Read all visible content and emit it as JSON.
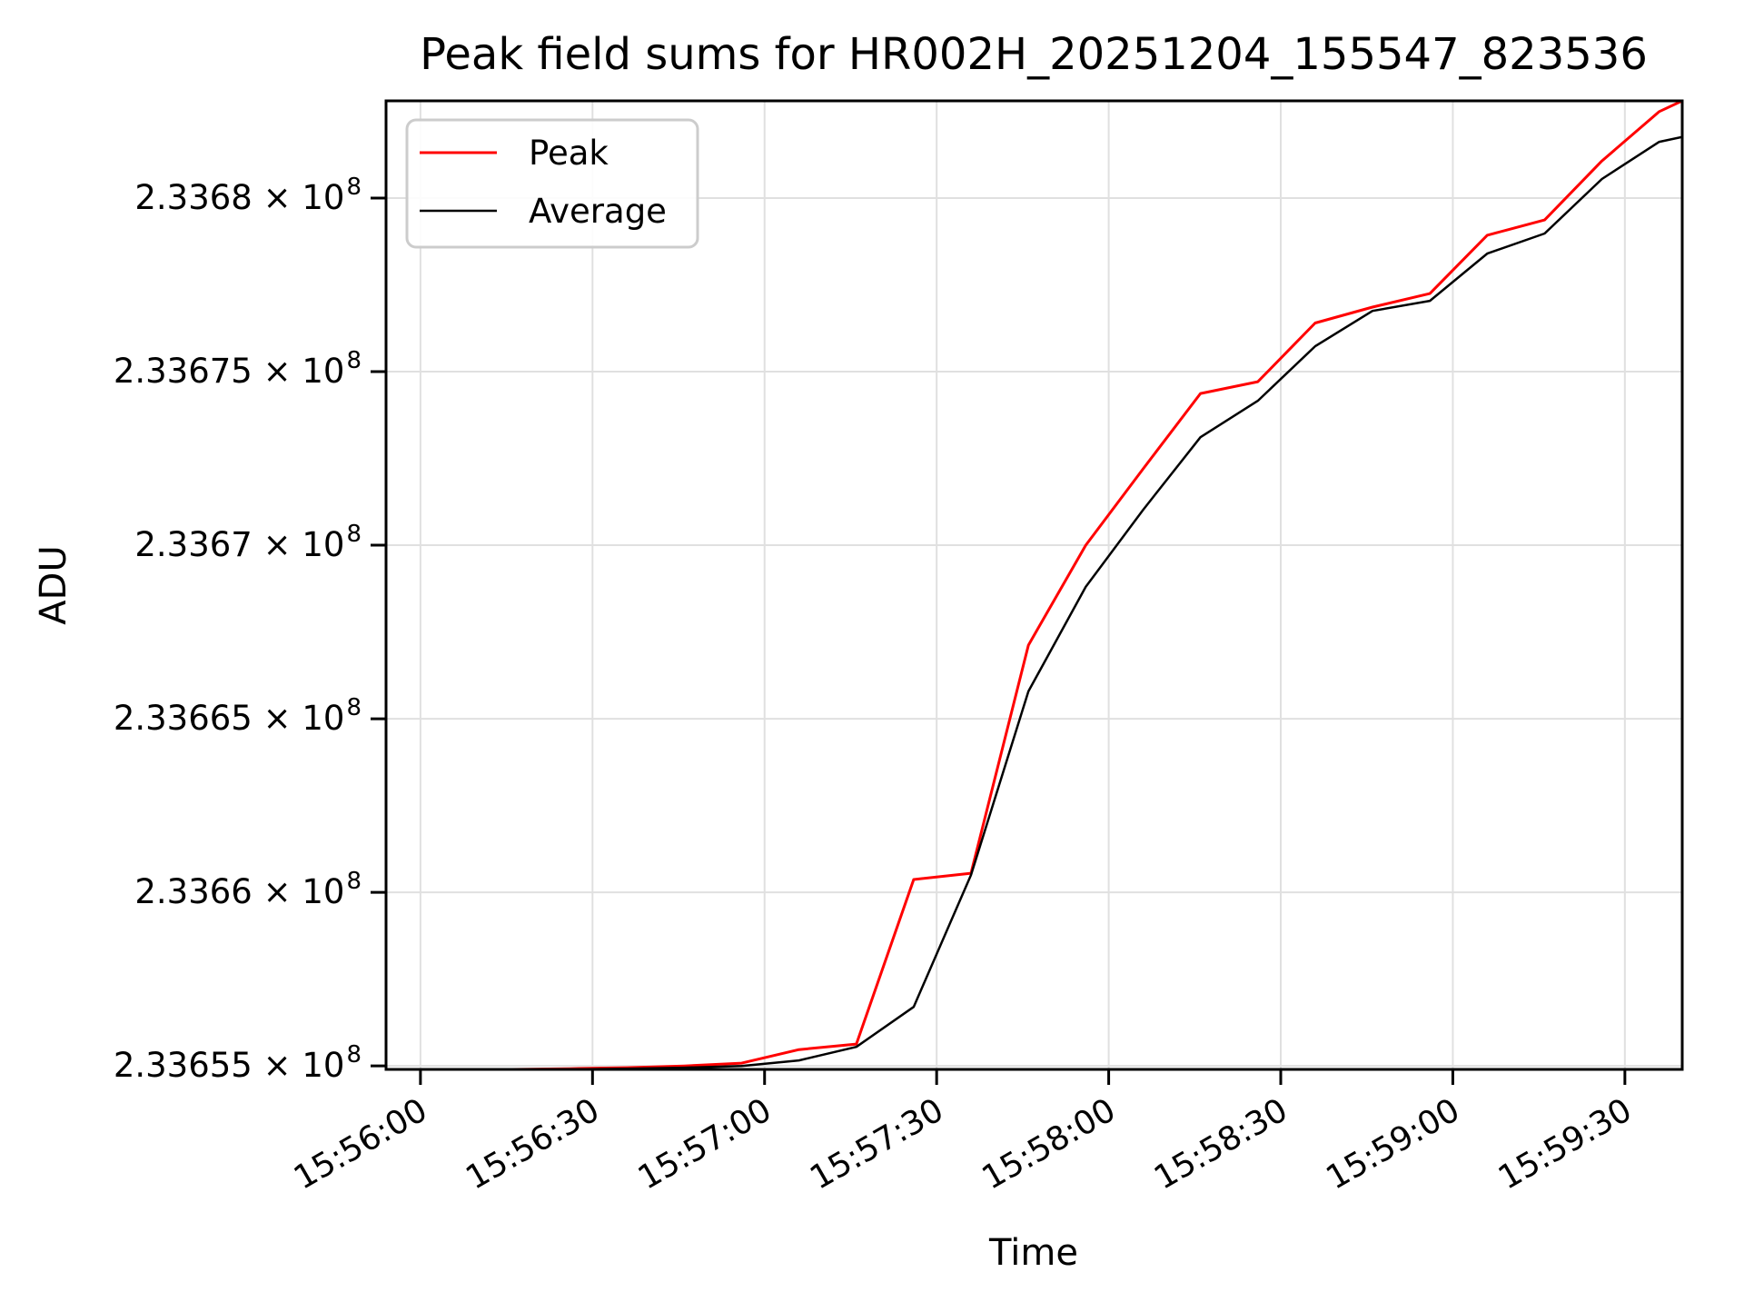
{
  "figure": {
    "title": "Peak field sums for HR002H_20251204_155547_823536",
    "xlabel": "Time",
    "ylabel": "ADU"
  },
  "legend": {
    "entries": [
      {
        "label": "Peak",
        "color": "#ff0000"
      },
      {
        "label": "Average",
        "color": "#000000"
      }
    ]
  },
  "style": {
    "background": "#ffffff",
    "grid_color": "#e0e0e0",
    "spine_color": "#000000",
    "tick_label_color": "#000000"
  },
  "chart_data": {
    "type": "line",
    "title": "Peak field sums for HR002H_20251204_155547_823536",
    "xlabel": "Time",
    "ylabel": "ADU",
    "grid": true,
    "legend_position": "upper left",
    "xlim": [
      "15:55:54",
      "15:59:40"
    ],
    "ylim": [
      233654900,
      233682800
    ],
    "x_ticks": [
      "15:56:00",
      "15:56:30",
      "15:57:00",
      "15:57:30",
      "15:58:00",
      "15:58:30",
      "15:59:00",
      "15:59:30"
    ],
    "y_ticks": [
      {
        "value": 233655000,
        "label": "2.33655 × 10",
        "exp": "8"
      },
      {
        "value": 233660000,
        "label": "2.3366 × 10",
        "exp": "8"
      },
      {
        "value": 233665000,
        "label": "2.33665 × 10",
        "exp": "8"
      },
      {
        "value": 233670000,
        "label": "2.3367 × 10",
        "exp": "8"
      },
      {
        "value": 233675000,
        "label": "2.33675 × 10",
        "exp": "8"
      },
      {
        "value": 233680000,
        "label": "2.3368 × 10",
        "exp": "8"
      }
    ],
    "x": [
      "15:55:54",
      "15:55:56",
      "15:56:06",
      "15:56:16",
      "15:56:26",
      "15:56:36",
      "15:56:46",
      "15:56:56",
      "15:57:06",
      "15:57:16",
      "15:57:26",
      "15:57:36",
      "15:57:46",
      "15:57:56",
      "15:58:06",
      "15:58:16",
      "15:58:26",
      "15:58:36",
      "15:58:46",
      "15:58:56",
      "15:59:06",
      "15:59:16",
      "15:59:26",
      "15:59:36",
      "15:59:40"
    ],
    "series": [
      {
        "name": "Peak",
        "color": "#ff0000",
        "width": 3,
        "values": [
          233654900,
          233654900,
          233654900,
          233654900,
          233654920,
          233654950,
          233655000,
          233655080,
          233655470,
          233655630,
          233660370,
          233660550,
          233667120,
          233670000,
          233672200,
          233674370,
          233674710,
          233676400,
          233676860,
          233677250,
          233678930,
          233679370,
          233681070,
          233682490,
          233682800
        ]
      },
      {
        "name": "Average",
        "color": "#000000",
        "width": 2.5,
        "values": [
          233654900,
          233654900,
          233654900,
          233654900,
          233654900,
          233654920,
          233654950,
          233655000,
          233655160,
          233655550,
          233656700,
          233660500,
          233665790,
          233668800,
          233671020,
          233673110,
          233674160,
          233675730,
          233676750,
          233677040,
          233678400,
          233678980,
          233680550,
          233681620,
          233681760
        ]
      }
    ]
  }
}
